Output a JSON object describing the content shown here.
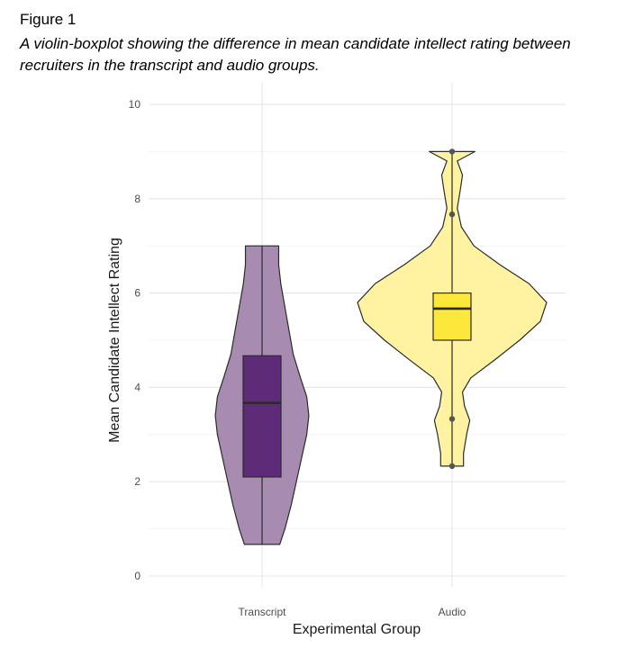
{
  "figure": {
    "label": "Figure 1",
    "caption": "A violin-boxplot showing the difference in mean candidate intellect rating between recruiters in the transcript and audio groups."
  },
  "chart_data": {
    "type": "violin-boxplot",
    "xlabel": "Experimental Group",
    "ylabel": "Mean Candidate Intellect Rating",
    "ylim": [
      0,
      10
    ],
    "yticks": [
      0,
      2,
      4,
      6,
      8,
      10
    ],
    "grid": true,
    "categories": [
      "Transcript",
      "Audio"
    ],
    "groups": [
      {
        "name": "Transcript",
        "violin_color": "#a88bb0",
        "box_color": "#5e2b78",
        "box": {
          "min": 0.67,
          "q1": 2.1,
          "median": 3.67,
          "q3": 4.67,
          "max": 7.0
        },
        "outliers": [],
        "density": [
          [
            0.67,
            0.17
          ],
          [
            1.0,
            0.22
          ],
          [
            1.5,
            0.28
          ],
          [
            2.0,
            0.33
          ],
          [
            2.5,
            0.38
          ],
          [
            3.0,
            0.43
          ],
          [
            3.4,
            0.45
          ],
          [
            3.8,
            0.43
          ],
          [
            4.2,
            0.37
          ],
          [
            4.7,
            0.3
          ],
          [
            5.2,
            0.26
          ],
          [
            5.7,
            0.22
          ],
          [
            6.2,
            0.18
          ],
          [
            6.6,
            0.16
          ],
          [
            7.0,
            0.16
          ]
        ]
      },
      {
        "name": "Audio",
        "violin_color": "#fff2a0",
        "box_color": "#fce83a",
        "box": {
          "min": 2.33,
          "q1": 5.0,
          "median": 5.67,
          "q3": 6.0,
          "max": 9.0
        },
        "outliers": [
          7.67
        ],
        "points": [
          9.0,
          7.67,
          3.33,
          2.33
        ],
        "density": [
          [
            2.33,
            0.11
          ],
          [
            2.6,
            0.11
          ],
          [
            3.0,
            0.14
          ],
          [
            3.3,
            0.17
          ],
          [
            3.6,
            0.12
          ],
          [
            3.9,
            0.1
          ],
          [
            4.2,
            0.18
          ],
          [
            4.6,
            0.42
          ],
          [
            5.0,
            0.65
          ],
          [
            5.4,
            0.85
          ],
          [
            5.8,
            0.91
          ],
          [
            6.2,
            0.74
          ],
          [
            6.6,
            0.46
          ],
          [
            7.0,
            0.21
          ],
          [
            7.4,
            0.09
          ],
          [
            7.8,
            0.05
          ],
          [
            8.2,
            0.08
          ],
          [
            8.5,
            0.1
          ],
          [
            8.8,
            0.05
          ],
          [
            9.0,
            0.22
          ]
        ]
      }
    ]
  }
}
